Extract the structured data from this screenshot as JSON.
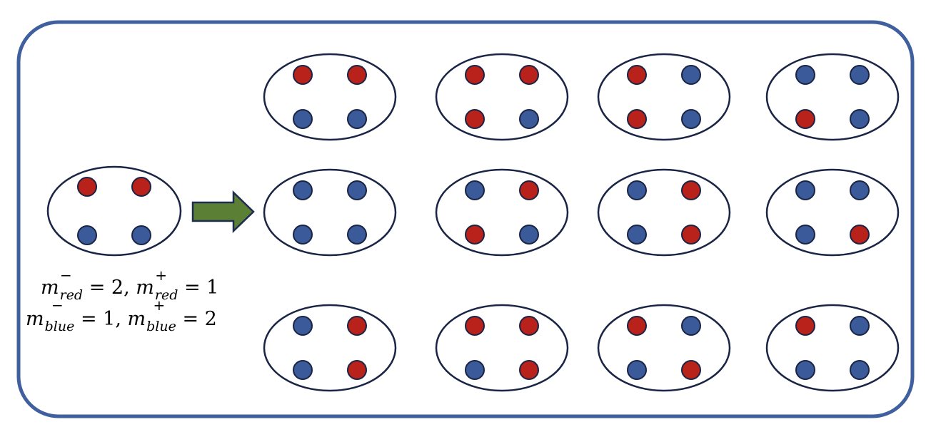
{
  "colors": {
    "frame": "#3f5f9e",
    "outline": "#1a2444",
    "red": "#b8221a",
    "blue": "#3a5a9a",
    "arrow_fill": "#5a7f35",
    "arrow_stroke": "#1e2d4f"
  },
  "input_group": [
    "red",
    "red",
    "blue",
    "blue"
  ],
  "output_groups": [
    [
      "red",
      "red",
      "blue",
      "blue"
    ],
    [
      "red",
      "red",
      "red",
      "blue"
    ],
    [
      "red",
      "blue",
      "red",
      "blue"
    ],
    [
      "blue",
      "blue",
      "red",
      "blue"
    ],
    [
      "blue",
      "blue",
      "blue",
      "blue"
    ],
    [
      "blue",
      "red",
      "red",
      "blue"
    ],
    [
      "blue",
      "red",
      "blue",
      "red"
    ],
    [
      "blue",
      "blue",
      "blue",
      "red"
    ],
    [
      "blue",
      "red",
      "blue",
      "red"
    ],
    [
      "red",
      "red",
      "blue",
      "red"
    ],
    [
      "red",
      "blue",
      "blue",
      "red"
    ],
    [
      "red",
      "blue",
      "blue",
      "blue"
    ]
  ],
  "formula": {
    "m": "m",
    "minus": "−",
    "plus": "+",
    "red": "red",
    "blue": "blue",
    "red_minus_value": "= 2,",
    "red_plus_value": "= 1",
    "blue_minus_value": "= 1,",
    "blue_plus_value": "= 2"
  }
}
